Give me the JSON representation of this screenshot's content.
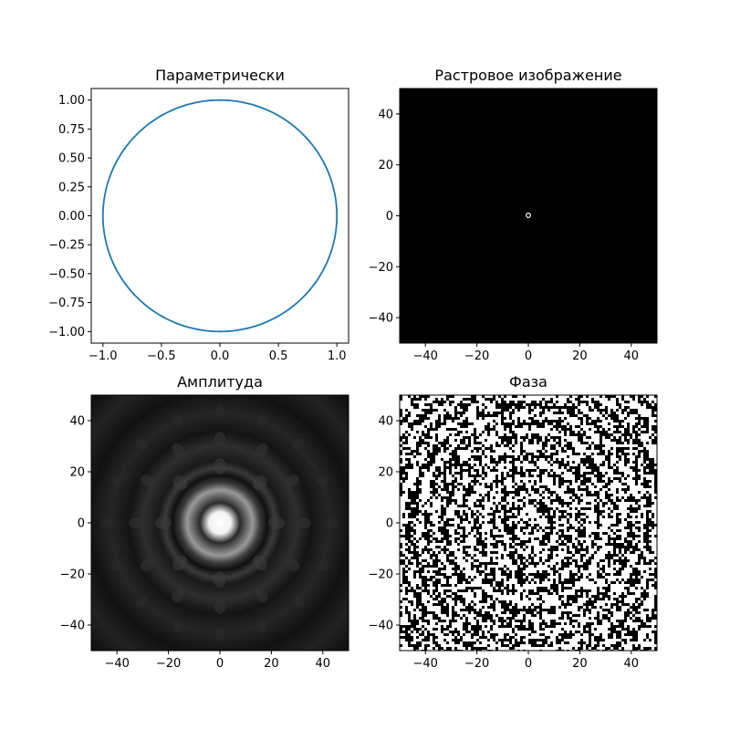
{
  "chart_data": [
    {
      "type": "line",
      "title": "Параметрически",
      "series": [
        {
          "curve": "unit-circle",
          "x": "cos(t)",
          "y": "sin(t)",
          "color": "#1f77b4"
        }
      ],
      "xlim": [
        -1.1,
        1.1
      ],
      "ylim": [
        -1.1,
        1.1
      ],
      "xticks": [
        -1.0,
        -0.5,
        0.0,
        0.5,
        1.0
      ],
      "xtick_labels": [
        "−1.0",
        "−0.5",
        "0.0",
        "0.5",
        "1.0"
      ],
      "yticks": [
        1.0,
        0.75,
        0.5,
        0.25,
        0.0,
        -0.25,
        -0.5,
        -0.75,
        -1.0
      ],
      "ytick_labels": [
        "1.00",
        "0.75",
        "0.50",
        "0.25",
        "0.00",
        "−0.25",
        "−0.50",
        "−0.75",
        "−1.00"
      ],
      "grid": false
    },
    {
      "type": "heatmap",
      "title": "Растровое изображение",
      "background": "#000000",
      "features": [
        {
          "shape": "small white ring",
          "center": [
            0,
            0
          ],
          "radius": 1
        }
      ],
      "xlim": [
        -50,
        50
      ],
      "ylim": [
        -50,
        50
      ],
      "xticks": [
        -40,
        -20,
        0,
        20,
        40
      ],
      "xtick_labels": [
        "−40",
        "−20",
        "0",
        "20",
        "40"
      ],
      "yticks": [
        40,
        20,
        0,
        -20,
        -40
      ],
      "ytick_labels": [
        "40",
        "20",
        "0",
        "−20",
        "−40"
      ]
    },
    {
      "type": "heatmap",
      "title": "Амплитуда",
      "colormap": "gray",
      "description_values": {
        "peak": [
          0,
          0
        ]
      },
      "xlim": [
        -50,
        50
      ],
      "ylim": [
        -50,
        50
      ],
      "xticks": [
        -40,
        -20,
        0,
        20,
        40
      ],
      "xtick_labels": [
        "−40",
        "−20",
        "0",
        "20",
        "40"
      ],
      "yticks": [
        40,
        20,
        0,
        -20,
        -40
      ],
      "ytick_labels": [
        "40",
        "20",
        "0",
        "−20",
        "−40"
      ]
    },
    {
      "type": "heatmap",
      "title": "Фаза",
      "colormap": "binary noise",
      "xlim": [
        -50,
        50
      ],
      "ylim": [
        -50,
        50
      ],
      "xticks": [
        -40,
        -20,
        0,
        20,
        40
      ],
      "xtick_labels": [
        "−40",
        "−20",
        "0",
        "20",
        "40"
      ],
      "yticks": [
        40,
        20,
        0,
        -20,
        -40
      ],
      "ytick_labels": [
        "40",
        "20",
        "0",
        "−20",
        "−40"
      ]
    }
  ]
}
